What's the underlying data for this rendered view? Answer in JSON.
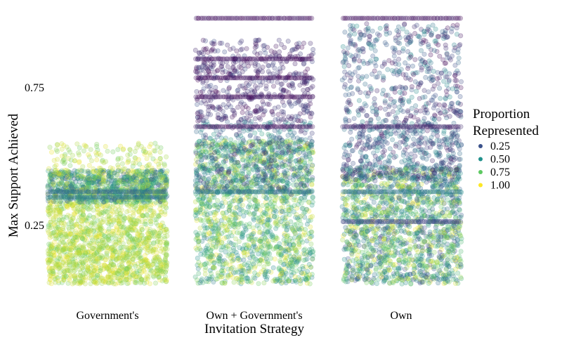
{
  "chart_data": {
    "type": "scatter",
    "title": "",
    "xlabel": "Invitation Strategy",
    "ylabel": "Max Support Achieved",
    "categories": [
      "Government's",
      "Own + Government's",
      "Own"
    ],
    "y_ticks": [
      0.25,
      0.75
    ],
    "y_tick_labels": [
      "0.25",
      "0.75"
    ],
    "ylim": [
      0.0,
      1.0
    ],
    "grid": false,
    "legend": {
      "title": "Proportion Represented",
      "title_lines": [
        "Proportion",
        "Represented"
      ],
      "position": "right",
      "entries": [
        {
          "label": "0.25",
          "value": 0.25,
          "color": "#3b528b"
        },
        {
          "label": "0.50",
          "value": 0.5,
          "color": "#21918c"
        },
        {
          "label": "0.75",
          "value": 0.75,
          "color": "#5ec962"
        },
        {
          "label": "1.00",
          "value": 1.0,
          "color": "#fde725"
        }
      ]
    },
    "colormap": [
      "#440154",
      "#3b528b",
      "#21918c",
      "#5ec962",
      "#fde725"
    ],
    "point_alpha": 0.25,
    "groups": [
      {
        "category": "Government's",
        "y_range": [
          0.02,
          0.54
        ],
        "bands": [
          {
            "y_min": 0.02,
            "y_max": 0.22,
            "share": 0.4,
            "proportion_range": [
              0.75,
              1.0
            ]
          },
          {
            "y_min": 0.22,
            "y_max": 0.32,
            "share": 0.15,
            "proportion_range": [
              0.75,
              1.0
            ]
          },
          {
            "y_min": 0.32,
            "y_max": 0.44,
            "share": 0.4,
            "proportion_range": [
              0.25,
              1.0
            ]
          },
          {
            "y_min": 0.44,
            "y_max": 0.54,
            "share": 0.05,
            "proportion_range": [
              0.75,
              1.0
            ]
          }
        ],
        "stripes": [
          {
            "y": 0.34,
            "proportion": 0.4
          },
          {
            "y": 0.36,
            "proportion": 0.35
          }
        ]
      },
      {
        "category": "Own + Government's",
        "y_range": [
          0.02,
          1.0
        ],
        "bands": [
          {
            "y_min": 0.02,
            "y_max": 0.55,
            "share": 0.62,
            "proportion_range": [
              0.4,
              1.0
            ]
          },
          {
            "y_min": 0.35,
            "y_max": 0.62,
            "share": 0.18,
            "proportion_range": [
              0.1,
              0.6
            ]
          },
          {
            "y_min": 0.62,
            "y_max": 0.92,
            "share": 0.2,
            "proportion_range": [
              0.0,
              0.25
            ]
          }
        ],
        "stripes": [
          {
            "y": 1.0,
            "proportion": 0.05
          },
          {
            "y": 0.85,
            "proportion": 0.05
          },
          {
            "y": 0.78,
            "proportion": 0.05
          },
          {
            "y": 0.71,
            "proportion": 0.05
          },
          {
            "y": 0.6,
            "proportion": 0.05
          },
          {
            "y": 0.36,
            "proportion": 0.4
          }
        ]
      },
      {
        "category": "Own",
        "y_range": [
          0.02,
          1.0
        ],
        "bands": [
          {
            "y_min": 0.02,
            "y_max": 0.45,
            "share": 0.6,
            "proportion_range": [
              0.2,
              1.0
            ]
          },
          {
            "y_min": 0.4,
            "y_max": 0.62,
            "share": 0.2,
            "proportion_range": [
              0.05,
              0.5
            ]
          },
          {
            "y_min": 0.62,
            "y_max": 0.98,
            "share": 0.2,
            "proportion_range": [
              0.0,
              0.5
            ]
          }
        ],
        "stripes": [
          {
            "y": 1.0,
            "proportion": 0.05
          },
          {
            "y": 0.6,
            "proportion": 0.1
          },
          {
            "y": 0.36,
            "proportion": 0.4
          },
          {
            "y": 0.25,
            "proportion": 0.2
          }
        ]
      }
    ]
  }
}
